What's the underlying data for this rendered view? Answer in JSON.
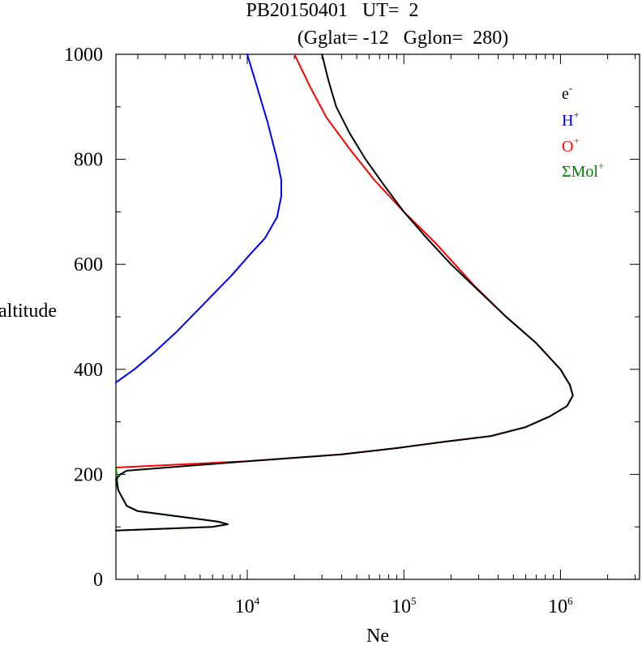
{
  "chart_data": {
    "type": "line",
    "title_line1": "PB20150401   UT=  2",
    "title_line2": "(Gglat= -12   Gglon=  280)",
    "xlabel": "Ne",
    "ylabel": "altitude",
    "x_scale": "log",
    "xlim": [
      1450,
      3200000
    ],
    "ylim": [
      0,
      1000
    ],
    "y_ticks": [
      0,
      200,
      400,
      600,
      800,
      1000
    ],
    "y_tick_labels": [
      "0",
      "200",
      "400",
      "600",
      "800",
      "1000"
    ],
    "x_ticks": [
      10000,
      100000,
      1000000
    ],
    "x_tick_labels": [
      {
        "base": "10",
        "exp": "4"
      },
      {
        "base": "10",
        "exp": "5"
      },
      {
        "base": "10",
        "exp": "6"
      }
    ],
    "legend_position": "top-right",
    "series": [
      {
        "name": "e",
        "name_sup": "-",
        "color": "#000000",
        "points": [
          [
            1450,
            93
          ],
          [
            6000,
            100
          ],
          [
            7500,
            105
          ],
          [
            6500,
            110
          ],
          [
            2000,
            130
          ],
          [
            1700,
            140
          ],
          [
            1500,
            170
          ],
          [
            1450,
            190
          ],
          [
            1550,
            200
          ],
          [
            1700,
            207
          ],
          [
            10000,
            225
          ],
          [
            40000,
            238
          ],
          [
            90000,
            250
          ],
          [
            180000,
            262
          ],
          [
            360000,
            273
          ],
          [
            600000,
            290
          ],
          [
            850000,
            310
          ],
          [
            1100000,
            330
          ],
          [
            1200000,
            350
          ],
          [
            1150000,
            370
          ],
          [
            1000000,
            400
          ],
          [
            700000,
            450
          ],
          [
            450000,
            500
          ],
          [
            300000,
            550
          ],
          [
            200000,
            600
          ],
          [
            140000,
            650
          ],
          [
            100000,
            700
          ],
          [
            75000,
            750
          ],
          [
            57000,
            800
          ],
          [
            45000,
            850
          ],
          [
            37000,
            900
          ],
          [
            33000,
            950
          ],
          [
            30000,
            1000
          ]
        ]
      },
      {
        "name": "H",
        "name_sup": "+",
        "color": "#0000ff",
        "points": [
          [
            1450,
            375
          ],
          [
            1900,
            400
          ],
          [
            2500,
            430
          ],
          [
            3500,
            470
          ],
          [
            5500,
            530
          ],
          [
            8000,
            580
          ],
          [
            10500,
            620
          ],
          [
            13000,
            650
          ],
          [
            15500,
            690
          ],
          [
            16500,
            730
          ],
          [
            16500,
            760
          ],
          [
            15500,
            800
          ],
          [
            13500,
            870
          ],
          [
            11500,
            940
          ],
          [
            10000,
            1000
          ]
        ]
      },
      {
        "name": "O",
        "name_sup": "+",
        "color": "#ff0000",
        "points": [
          [
            1450,
            213
          ],
          [
            10000,
            225
          ],
          [
            40000,
            238
          ],
          [
            90000,
            250
          ],
          [
            180000,
            262
          ],
          [
            360000,
            273
          ],
          [
            600000,
            290
          ],
          [
            850000,
            310
          ],
          [
            1100000,
            330
          ],
          [
            1200000,
            350
          ],
          [
            1150000,
            370
          ],
          [
            1000000,
            400
          ],
          [
            700000,
            450
          ],
          [
            450000,
            500
          ],
          [
            280000,
            560
          ],
          [
            160000,
            640
          ],
          [
            100000,
            700
          ],
          [
            65000,
            760
          ],
          [
            45000,
            820
          ],
          [
            32000,
            880
          ],
          [
            25000,
            940
          ],
          [
            20000,
            1000
          ]
        ]
      },
      {
        "name": "ΣMol",
        "name_sup": "+",
        "color": "#008000",
        "points": [
          [
            1450,
            93
          ],
          [
            6000,
            100
          ],
          [
            7500,
            105
          ],
          [
            6500,
            110
          ],
          [
            2000,
            130
          ],
          [
            1700,
            140
          ],
          [
            1500,
            170
          ],
          [
            1450,
            213
          ]
        ]
      }
    ]
  }
}
